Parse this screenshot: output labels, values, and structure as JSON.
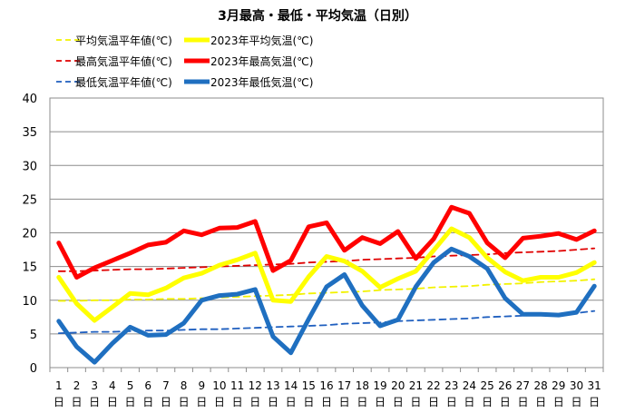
{
  "chart_data": {
    "type": "line",
    "title": "3月最高・最低・平均気温（日別）",
    "xlabel": "",
    "ylabel": "",
    "ylim": [
      0,
      40
    ],
    "yticks": [
      0,
      5,
      10,
      15,
      20,
      25,
      30,
      35,
      40
    ],
    "grid": "horizontal",
    "legend_position": "top-left",
    "day_suffix": "日",
    "categories": [
      "1",
      "2",
      "3",
      "4",
      "5",
      "6",
      "7",
      "8",
      "9",
      "10",
      "11",
      "12",
      "13",
      "14",
      "15",
      "16",
      "17",
      "18",
      "19",
      "20",
      "21",
      "22",
      "23",
      "24",
      "25",
      "26",
      "27",
      "28",
      "29",
      "30",
      "31"
    ],
    "series": [
      {
        "name": "平均気温平年値(℃)",
        "style": "dashed",
        "color": "#f2f200",
        "values": [
          9.9,
          9.9,
          10.0,
          10.0,
          10.1,
          10.1,
          10.2,
          10.2,
          10.3,
          10.4,
          10.5,
          10.6,
          10.7,
          10.8,
          11.0,
          11.1,
          11.2,
          11.3,
          11.5,
          11.6,
          11.7,
          11.9,
          12.0,
          12.1,
          12.3,
          12.4,
          12.5,
          12.7,
          12.8,
          12.9,
          13.1
        ]
      },
      {
        "name": "2023年平均気温(℃)",
        "style": "solid",
        "color": "#ffff00",
        "values": [
          13.4,
          9.5,
          7.0,
          9.0,
          11.0,
          10.8,
          11.8,
          13.3,
          14.0,
          15.2,
          16.0,
          17.0,
          10.0,
          9.8,
          13.5,
          16.5,
          15.8,
          14.3,
          11.9,
          13.2,
          14.3,
          17.4,
          20.6,
          19.3,
          16.3,
          14.2,
          12.9,
          13.4,
          13.4,
          14.1,
          15.6
        ]
      },
      {
        "name": "最高気温平年値(℃)",
        "style": "dashed",
        "color": "#e00000",
        "values": [
          14.3,
          14.3,
          14.4,
          14.5,
          14.6,
          14.6,
          14.7,
          14.8,
          14.9,
          15.0,
          15.1,
          15.2,
          15.3,
          15.4,
          15.6,
          15.7,
          15.8,
          16.0,
          16.1,
          16.2,
          16.3,
          16.5,
          16.6,
          16.7,
          16.8,
          17.0,
          17.1,
          17.2,
          17.3,
          17.5,
          17.7
        ]
      },
      {
        "name": "2023年最高気温(℃)",
        "style": "solid",
        "color": "#ff0000",
        "values": [
          18.5,
          13.4,
          14.8,
          15.9,
          17.0,
          18.2,
          18.6,
          20.3,
          19.7,
          20.7,
          20.8,
          21.7,
          14.4,
          15.9,
          20.9,
          21.5,
          17.4,
          19.3,
          18.4,
          20.2,
          16.2,
          19.1,
          23.8,
          22.9,
          18.5,
          16.3,
          19.2,
          19.5,
          19.9,
          19.0,
          20.3
        ]
      },
      {
        "name": "最低気温平年値(℃)",
        "style": "dashed",
        "color": "#1f5fbf",
        "values": [
          5.1,
          5.2,
          5.3,
          5.3,
          5.4,
          5.5,
          5.5,
          5.6,
          5.7,
          5.7,
          5.8,
          5.9,
          6.0,
          6.1,
          6.2,
          6.3,
          6.5,
          6.6,
          6.7,
          6.9,
          7.0,
          7.1,
          7.2,
          7.3,
          7.5,
          7.6,
          7.7,
          7.8,
          7.9,
          8.1,
          8.4
        ]
      },
      {
        "name": "2023年最低気温(℃)",
        "style": "solid",
        "color": "#1f6fc0",
        "values": [
          6.9,
          3.1,
          0.8,
          3.6,
          6.0,
          4.8,
          4.9,
          6.6,
          10.0,
          10.7,
          10.9,
          11.6,
          4.6,
          2.2,
          7.2,
          12.0,
          13.8,
          9.2,
          6.2,
          7.1,
          12.0,
          15.6,
          17.6,
          16.5,
          14.7,
          10.3,
          7.9,
          7.9,
          7.8,
          8.2,
          12.1
        ]
      }
    ]
  }
}
